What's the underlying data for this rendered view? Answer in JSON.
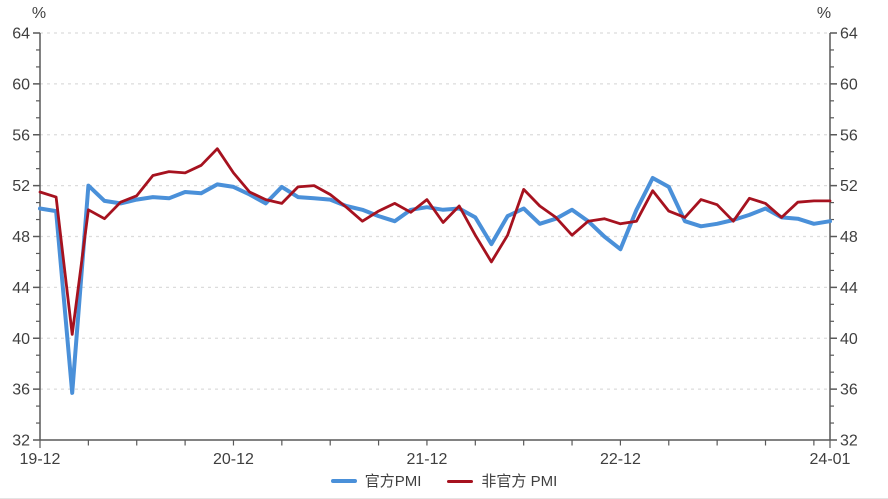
{
  "chart_data": {
    "type": "line",
    "title": "",
    "unit_labels": {
      "left": "%",
      "right": "%"
    },
    "y_axis": {
      "min": 32,
      "max": 64,
      "major_step": 4,
      "minor_per_major": 3,
      "tick_labels": [
        "32",
        "36",
        "40",
        "44",
        "48",
        "52",
        "56",
        "60",
        "64"
      ],
      "mirrored_right_axis": true
    },
    "x_axis": {
      "minor_tick_every_months": 3,
      "ticks": [
        {
          "index": 0,
          "label": "19-12"
        },
        {
          "index": 12,
          "label": "20-12"
        },
        {
          "index": 24,
          "label": "21-12"
        },
        {
          "index": 36,
          "label": "22-12"
        },
        {
          "index": 49,
          "label": "24-01"
        }
      ]
    },
    "grid": {
      "horizontal": true,
      "style": "dashed",
      "color": "#dcdcdc"
    },
    "axis_color": "#595959",
    "text_color": "#3f3f3f",
    "legend_position": "bottom-center",
    "categories": [
      "19-12",
      "20-01",
      "20-02",
      "20-03",
      "20-04",
      "20-05",
      "20-06",
      "20-07",
      "20-08",
      "20-09",
      "20-10",
      "20-11",
      "20-12",
      "21-01",
      "21-02",
      "21-03",
      "21-04",
      "21-05",
      "21-06",
      "21-07",
      "21-08",
      "21-09",
      "21-10",
      "21-11",
      "21-12",
      "22-01",
      "22-02",
      "22-03",
      "22-04",
      "22-05",
      "22-06",
      "22-07",
      "22-08",
      "22-09",
      "22-10",
      "22-11",
      "22-12",
      "23-01",
      "23-02",
      "23-03",
      "23-04",
      "23-05",
      "23-06",
      "23-07",
      "23-08",
      "23-09",
      "23-10",
      "23-11",
      "23-12",
      "24-01"
    ],
    "series": [
      {
        "name": "官方PMI",
        "color": "#4a90d9",
        "line_width": 4,
        "values": [
          50.2,
          50.0,
          35.7,
          52.0,
          50.8,
          50.6,
          50.9,
          51.1,
          51.0,
          51.5,
          51.4,
          52.1,
          51.9,
          51.3,
          50.6,
          51.9,
          51.1,
          51.0,
          50.9,
          50.4,
          50.1,
          49.6,
          49.2,
          50.1,
          50.3,
          50.1,
          50.2,
          49.5,
          47.4,
          49.6,
          50.2,
          49.0,
          49.4,
          50.1,
          49.2,
          48.0,
          47.0,
          50.1,
          52.6,
          51.9,
          49.2,
          48.8,
          49.0,
          49.3,
          49.7,
          50.2,
          49.5,
          49.4,
          49.0,
          49.2
        ]
      },
      {
        "name": "非官方 PMI",
        "color": "#a6121f",
        "line_width": 2.8,
        "values": [
          51.5,
          51.1,
          40.3,
          50.1,
          49.4,
          50.7,
          51.2,
          52.8,
          53.1,
          53.0,
          53.6,
          54.9,
          53.0,
          51.5,
          50.9,
          50.6,
          51.9,
          52.0,
          51.3,
          50.3,
          49.2,
          50.0,
          50.6,
          49.9,
          50.9,
          49.1,
          50.4,
          48.1,
          46.0,
          48.1,
          51.7,
          50.4,
          49.5,
          48.1,
          49.2,
          49.4,
          49.0,
          49.2,
          51.6,
          50.0,
          49.5,
          50.9,
          50.5,
          49.2,
          51.0,
          50.6,
          49.5,
          50.7,
          50.8,
          50.8
        ]
      }
    ]
  }
}
